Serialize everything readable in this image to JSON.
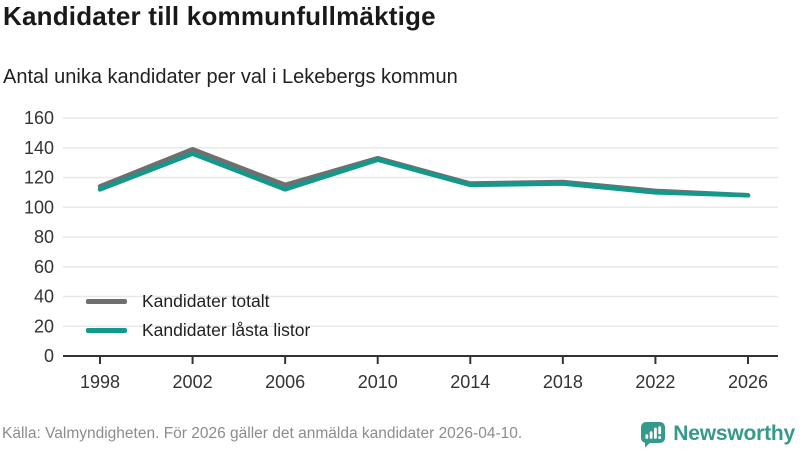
{
  "header": {
    "title": "Kandidater till kommunfullmäktige",
    "subtitle": "Antal unika kandidater per val i Lekebergs kommun"
  },
  "chart_data": {
    "type": "line",
    "categories": [
      "1998",
      "2002",
      "2006",
      "2010",
      "2014",
      "2018",
      "2022",
      "2026"
    ],
    "series": [
      {
        "name": "Kandidater totalt",
        "color": "#6f6f6f",
        "values": [
          114,
          139,
          115,
          133,
          116,
          117,
          111,
          108
        ]
      },
      {
        "name": "Kandidater låsta listor",
        "color": "#12998c",
        "values": [
          112,
          136,
          112,
          132,
          115,
          116,
          110,
          108
        ]
      }
    ],
    "title": "Kandidater till kommunfullmäktige",
    "subtitle": "Antal unika kandidater per val i Lekebergs kommun",
    "xlabel": "",
    "ylabel": "",
    "ylim": [
      0,
      160
    ],
    "ytick_step": 20,
    "grid": true,
    "legend_position": "lower-left",
    "colors": {
      "grid": "#e8e8e8",
      "axis": "#333333",
      "tick_text": "#333333"
    }
  },
  "footer": {
    "source": "Källa: Valmyndigheten. För 2026 gäller det anmälda kandidater 2026-04-10.",
    "brand": "Newsworthy"
  }
}
